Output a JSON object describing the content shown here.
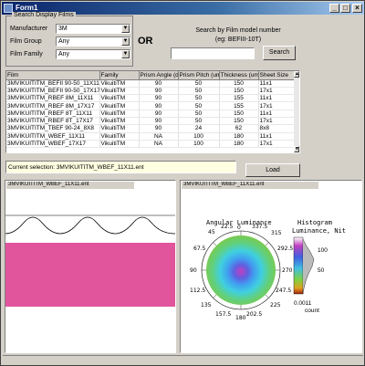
{
  "window": {
    "title": "Form1",
    "controls": {
      "minimize": "_",
      "maximize": "□",
      "close": "×"
    }
  },
  "search": {
    "group_title": "Search Display Films",
    "manufacturer_label": "Manufacturer",
    "manufacturer_value": "3M",
    "film_group_label": "Film Group",
    "film_group_value": "Any",
    "film_family_label": "Film Family",
    "film_family_value": "Any",
    "or_label": "OR",
    "model_label_line1": "Search by Film model number",
    "model_label_line2": "(eg: BEFIII-10T)",
    "model_value": "",
    "search_button": "Search"
  },
  "grid": {
    "columns": [
      "Film",
      "Family",
      "Prism Angle (deg)",
      "Prism Pitch (um)",
      "Thickness (um)",
      "Sheet Size"
    ],
    "rows": [
      [
        "3MVIKUITITM_BEFII 90-50_11X11",
        "VikuitiTM",
        "90",
        "50",
        "150",
        "11x1"
      ],
      [
        "3MVIKUITITM_BEFII 90-50_17X17",
        "VikuitiTM",
        "90",
        "50",
        "150",
        "17x1"
      ],
      [
        "3MVIKUITITM_RBEF 8M_11X11",
        "VikuitiTM",
        "90",
        "50",
        "155",
        "11x1"
      ],
      [
        "3MVIKUITITM_RBEF 8M_17X17",
        "VikuitiTM",
        "90",
        "50",
        "155",
        "17x1"
      ],
      [
        "3MVIKUITITM_RBEF 8T_11X11",
        "VikuitiTM",
        "90",
        "50",
        "150",
        "11x1"
      ],
      [
        "3MVIKUITITM_RBEF 8T_17X17",
        "VikuitiTM",
        "90",
        "50",
        "150",
        "17x1"
      ],
      [
        "3MVIKUITITM_TBEF 90-24_8X8",
        "VikuitiTM",
        "90",
        "24",
        "62",
        "8x8"
      ],
      [
        "3MVIKUITITM_WBEF_11X11",
        "VikuitiTM",
        "NA",
        "100",
        "180",
        "11x1"
      ],
      [
        "3MVIKUITITM_WBEF_17X17",
        "VikuitiTM",
        "NA",
        "100",
        "180",
        "17x1"
      ]
    ]
  },
  "selection": {
    "text": "Current selection: 3MVIKUITITM_WBEF_11X11.ent"
  },
  "load_button": "Load",
  "left_panel": {
    "title": "3MVIKUITITM_WBEF_11X11.ent"
  },
  "right_panel": {
    "title": "3MVIKUITITM_WBEF_11X11.ent",
    "polar_title": "Angular Luminance",
    "hist_title_line1": "Histogram",
    "hist_title_line2": "Luminance, Nit",
    "hist_ticks": [
      "100",
      "50"
    ],
    "hist_min": "0.0011",
    "hist_count": "count",
    "angle_labels": [
      "0",
      "45",
      "90",
      "135",
      "180",
      "225",
      "270",
      "315",
      "22.5",
      "67.5",
      "112.5",
      "157.5",
      "202.5",
      "247.5",
      "292.5",
      "337.5"
    ]
  },
  "colors": {
    "titlebar": "#0a246a",
    "fill": "#e0559c",
    "selection_bg": "#ffffe1"
  }
}
